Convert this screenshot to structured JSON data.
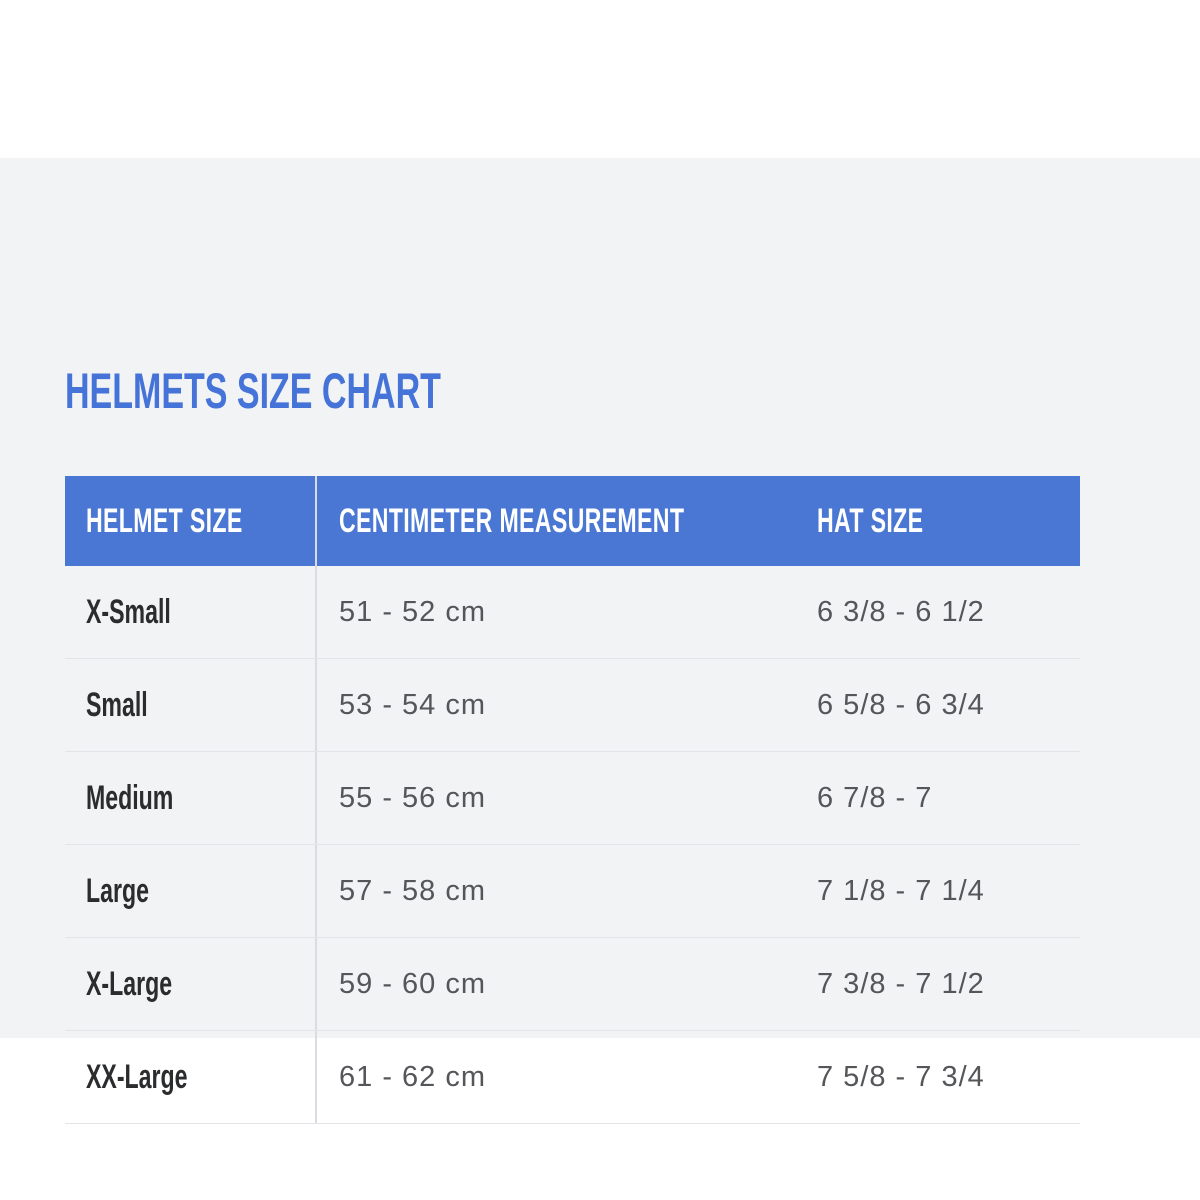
{
  "page": {
    "title": "HELMETS SIZE CHART"
  },
  "colors": {
    "page_background": "#ffffff",
    "panel_background": "#f2f3f5",
    "title_text": "#4573d7",
    "header_background": "#4a77d3",
    "header_text": "#ffffff",
    "size_label_text": "#2b2c2e",
    "value_text": "#54565a",
    "row_separator": "#e2e4e8",
    "column_divider": "#d9dce1"
  },
  "table": {
    "columns": [
      "HELMET SIZE",
      "CENTIMETER MEASUREMENT",
      "HAT SIZE"
    ],
    "rows": [
      {
        "helmet_size": "X-Small",
        "cm": "51 - 52 cm",
        "hat": "6 3/8 - 6 1/2"
      },
      {
        "helmet_size": "Small",
        "cm": "53 - 54 cm",
        "hat": "6 5/8 - 6 3/4"
      },
      {
        "helmet_size": "Medium",
        "cm": "55 - 56 cm",
        "hat": "6 7/8 - 7"
      },
      {
        "helmet_size": "Large",
        "cm": "57 - 58 cm",
        "hat": "7 1/8 - 7 1/4"
      },
      {
        "helmet_size": "X-Large",
        "cm": "59 - 60 cm",
        "hat": "7 3/8 - 7 1/2"
      },
      {
        "helmet_size": "XX-Large",
        "cm": "61 - 62 cm",
        "hat": "7 5/8 - 7 3/4"
      }
    ]
  }
}
